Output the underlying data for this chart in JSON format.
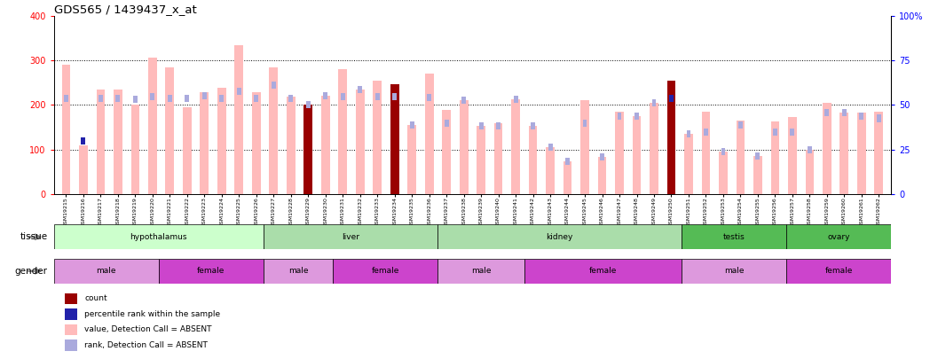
{
  "title": "GDS565 / 1439437_x_at",
  "samples": [
    "GSM19215",
    "GSM19216",
    "GSM19217",
    "GSM19218",
    "GSM19219",
    "GSM19220",
    "GSM19221",
    "GSM19222",
    "GSM19223",
    "GSM19224",
    "GSM19225",
    "GSM19226",
    "GSM19227",
    "GSM19228",
    "GSM19229",
    "GSM19230",
    "GSM19231",
    "GSM19232",
    "GSM19233",
    "GSM19234",
    "GSM19235",
    "GSM19236",
    "GSM19237",
    "GSM19238",
    "GSM19239",
    "GSM19240",
    "GSM19241",
    "GSM19242",
    "GSM19243",
    "GSM19244",
    "GSM19245",
    "GSM19246",
    "GSM19247",
    "GSM19248",
    "GSM19249",
    "GSM19250",
    "GSM19251",
    "GSM19252",
    "GSM19253",
    "GSM19254",
    "GSM19255",
    "GSM19256",
    "GSM19257",
    "GSM19258",
    "GSM19259",
    "GSM19260",
    "GSM19261",
    "GSM19262"
  ],
  "values": [
    290,
    110,
    235,
    235,
    200,
    307,
    285,
    195,
    228,
    238,
    335,
    228,
    285,
    218,
    200,
    220,
    280,
    235,
    255,
    246,
    155,
    270,
    188,
    210,
    153,
    160,
    213,
    153,
    105,
    73,
    210,
    83,
    185,
    175,
    205,
    255,
    135,
    185,
    95,
    165,
    85,
    163,
    173,
    100,
    205,
    183,
    183,
    185
  ],
  "rank_pos": [
    215,
    120,
    215,
    215,
    213,
    218,
    215,
    215,
    220,
    215,
    230,
    215,
    245,
    215,
    200,
    220,
    218,
    235,
    218,
    218,
    155,
    217,
    160,
    210,
    153,
    153,
    213,
    153,
    105,
    73,
    160,
    83,
    175,
    175,
    205,
    215,
    135,
    140,
    95,
    155,
    85,
    140,
    140,
    100,
    182,
    183,
    175,
    170
  ],
  "is_count": [
    false,
    false,
    false,
    false,
    false,
    false,
    false,
    false,
    false,
    false,
    false,
    false,
    false,
    false,
    true,
    false,
    false,
    false,
    false,
    true,
    false,
    false,
    false,
    false,
    false,
    false,
    false,
    false,
    false,
    false,
    false,
    false,
    false,
    false,
    false,
    true,
    false,
    false,
    false,
    false,
    false,
    false,
    false,
    false,
    false,
    false,
    false,
    false
  ],
  "is_percentile": [
    false,
    true,
    false,
    false,
    false,
    false,
    false,
    false,
    false,
    false,
    false,
    false,
    false,
    false,
    false,
    false,
    false,
    false,
    false,
    false,
    false,
    false,
    false,
    false,
    false,
    false,
    false,
    false,
    false,
    false,
    false,
    false,
    false,
    false,
    false,
    true,
    false,
    false,
    false,
    false,
    false,
    false,
    false,
    false,
    false,
    false,
    false,
    false
  ],
  "tissues": [
    {
      "label": "hypothalamus",
      "start": 0,
      "end": 12,
      "color": "#ccffcc"
    },
    {
      "label": "liver",
      "start": 12,
      "end": 22,
      "color": "#aaddaa"
    },
    {
      "label": "kidney",
      "start": 22,
      "end": 36,
      "color": "#aaddaa"
    },
    {
      "label": "testis",
      "start": 36,
      "end": 42,
      "color": "#55bb55"
    },
    {
      "label": "ovary",
      "start": 42,
      "end": 48,
      "color": "#55bb55"
    }
  ],
  "genders": [
    {
      "label": "male",
      "start": 0,
      "end": 6,
      "color": "#dd99dd"
    },
    {
      "label": "female",
      "start": 6,
      "end": 12,
      "color": "#cc44cc"
    },
    {
      "label": "male",
      "start": 12,
      "end": 16,
      "color": "#dd99dd"
    },
    {
      "label": "female",
      "start": 16,
      "end": 22,
      "color": "#cc44cc"
    },
    {
      "label": "male",
      "start": 22,
      "end": 27,
      "color": "#dd99dd"
    },
    {
      "label": "female",
      "start": 27,
      "end": 36,
      "color": "#cc44cc"
    },
    {
      "label": "male",
      "start": 36,
      "end": 42,
      "color": "#dd99dd"
    },
    {
      "label": "female",
      "start": 42,
      "end": 48,
      "color": "#cc44cc"
    }
  ],
  "ylim": [
    0,
    400
  ],
  "yticks_left": [
    0,
    100,
    200,
    300,
    400
  ],
  "yticks_right_labels": [
    "0",
    "25",
    "50",
    "75",
    "100%"
  ],
  "bar_color": "#ffbbbb",
  "rank_color": "#aaaadd",
  "count_color": "#990000",
  "percentile_color": "#2222aa",
  "rank_marker_size": 10,
  "bar_width": 0.5
}
